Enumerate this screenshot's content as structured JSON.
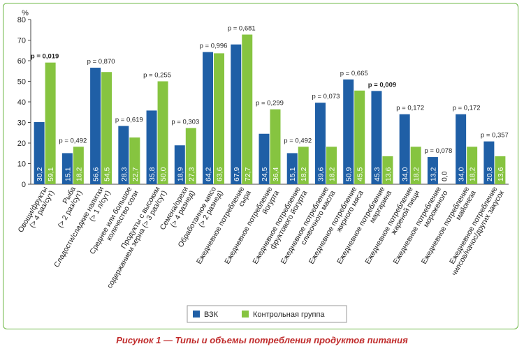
{
  "caption": "Рисунок 1 — Типы и объемы потребления продуктов питания",
  "chart_data": {
    "type": "bar",
    "ylabel": "%",
    "ylim": [
      0,
      80
    ],
    "yticks": [
      0,
      10,
      20,
      30,
      40,
      50,
      60,
      70,
      80
    ],
    "grid": false,
    "legend_position": "bottom-right",
    "colors": {
      "ВЗК": "#1f5fa6",
      "Контрольная группа": "#86c440"
    },
    "categories": [
      "Овощи/фрукты (> 4 раз/сут)",
      "Рыба (> 2 раз/сут)",
      "Сладости/сладкие напитки (> 1 л/сут)",
      "Среднее или большое количество соли",
      "Продукты с высоким содержанием зерна (> 3 раз/сут)",
      "Семена/орехи (> 4 разнед)",
      "Обработанное мясо (> 2 разнед)",
      "Ежедневное потребление сыра",
      "Ежедневное потребление йогурта",
      "Ежедневное потребление фруктового йогурта",
      "Ежедневное потребление сливочного масла",
      "Ежедневное потребление жирного мяса",
      "Ежедневное потребление маргарина",
      "Ежедневное потребление жареной пищи",
      "Ежедневное потребление мороженого",
      "Ежедневное потребление майонеза",
      "Ежедневное потребление чипсов/начос/других закусок"
    ],
    "category_lines": [
      [
        "Овощи/фрукты",
        "(> 4 раз/сут)"
      ],
      [
        "Рыба",
        "(> 2 раз/сут)"
      ],
      [
        "Сладости/сладкие напитки",
        "(> 1 л/сут)"
      ],
      [
        "Среднее или большое",
        "количество соли"
      ],
      [
        "Продукты с высоким",
        "содержанием зерна (> 3 раз/сут)"
      ],
      [
        "Семена/орехи",
        "(> 4 разнед)"
      ],
      [
        "Обработанное мясо",
        "(> 2 разнед)"
      ],
      [
        "Ежедневное потребление",
        "сыра"
      ],
      [
        "Ежедневное потребление",
        "йогурта"
      ],
      [
        "Ежедневное потребление",
        "фруктового йогурта"
      ],
      [
        "Ежедневное потребление",
        "сливочного масла"
      ],
      [
        "Ежедневное потребление",
        "жирного мяса"
      ],
      [
        "Ежедневное потребление",
        "маргарина"
      ],
      [
        "Ежедневное потребление",
        "жареной пищи"
      ],
      [
        "Ежедневное потребление",
        "мороженого"
      ],
      [
        "Ежедневное потребление",
        "майонеза"
      ],
      [
        "Ежедневное потребление",
        "чипсов/начос/других закусок"
      ]
    ],
    "series": [
      {
        "name": "ВЗК",
        "values": [
          30.2,
          15.1,
          56.6,
          28.3,
          35.8,
          18.9,
          64.2,
          67.9,
          24.5,
          15.1,
          39.6,
          50.9,
          45.3,
          34.0,
          13.2,
          34.0,
          20.8
        ],
        "labels": [
          "30,2",
          "15,1",
          "56,6",
          "28,3",
          "35,8",
          "18,9",
          "64,2",
          "67,9",
          "24,5",
          "15,1",
          "39,6",
          "50,9",
          "45,3",
          "34,0",
          "13,2",
          "34,0",
          "20,8"
        ]
      },
      {
        "name": "Контрольная группа",
        "values": [
          59.1,
          18.2,
          54.5,
          22.7,
          50.0,
          27.3,
          63.6,
          72.7,
          36.4,
          18.2,
          18.2,
          45.5,
          13.6,
          18.2,
          0.0,
          18.2,
          13.6
        ],
        "labels": [
          "59,1",
          "18,2",
          "54,5",
          "22,7",
          "50,0",
          "27,3",
          "63,6",
          "72,7",
          "36,4",
          "18,2",
          "18,2",
          "45,5",
          "13,6",
          "18,2",
          "0,0",
          "18,2",
          "13,6"
        ]
      }
    ],
    "p_values": [
      "p = 0,019",
      "p = 0,492",
      "p = 0,870",
      "p = 0,619",
      "p = 0,255",
      "p = 0,303",
      "p = 0,996",
      "p = 0,681",
      "p = 0,299",
      "p = 0,492",
      "p = 0,073",
      "p = 0,665",
      "p = 0,009",
      "p = 0,172",
      "p = 0,078",
      "p = 0,172",
      "p = 0,357"
    ],
    "p_bold": [
      true,
      false,
      false,
      false,
      false,
      false,
      false,
      false,
      false,
      false,
      false,
      false,
      true,
      false,
      false,
      false,
      false
    ]
  }
}
